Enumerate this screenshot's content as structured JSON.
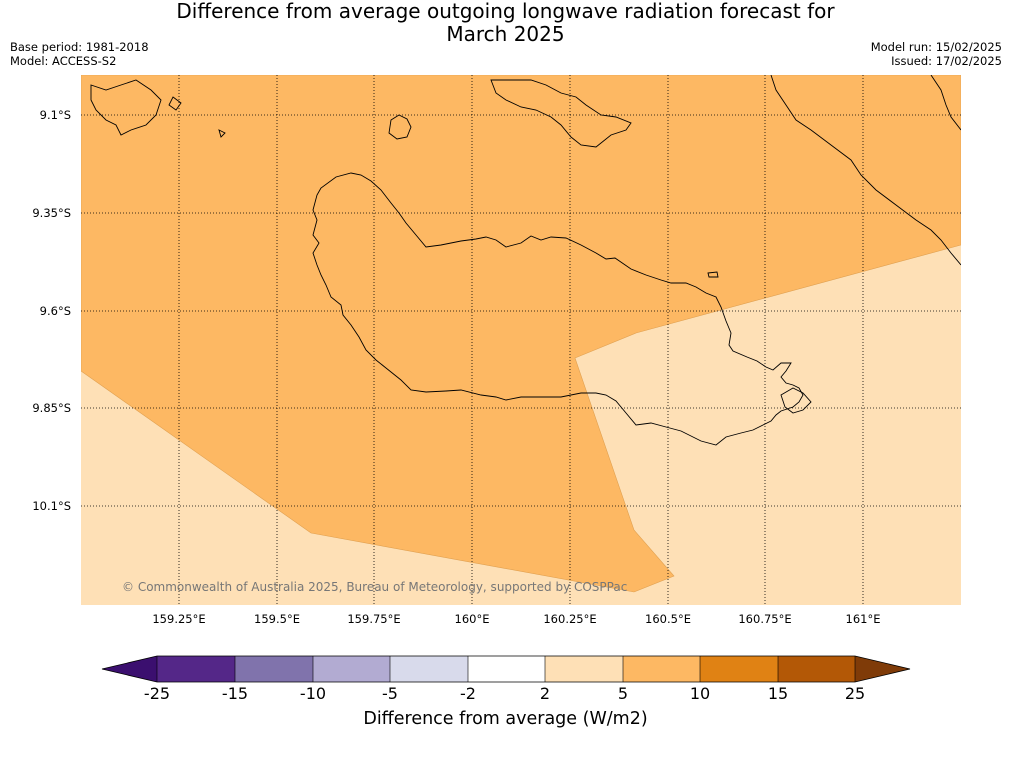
{
  "title_line1": "Difference from average outgoing longwave radiation forecast for",
  "title_line2": "March 2025",
  "base_period": "Base period: 1981-2018",
  "model": "Model: ACCESS-S2",
  "model_run": "Model run: 15/02/2025",
  "issued": "Issued: 17/02/2025",
  "copyright": "© Commonwealth of Australia 2025, Bureau of Meteorology, supported by COSPPac",
  "lat_labels": [
    "9.1°S",
    "9.35°S",
    "9.6°S",
    "9.85°S",
    "10.1°S"
  ],
  "lon_labels": [
    "159.25°E",
    "159.5°E",
    "159.75°E",
    "160°E",
    "160.25°E",
    "160.5°E",
    "160.75°E",
    "161°E"
  ],
  "colorbar": {
    "ticks": [
      "-25",
      "-15",
      "-10",
      "-5",
      "-2",
      "2",
      "5",
      "10",
      "15",
      "25"
    ],
    "colors": [
      "#3b0f6f",
      "#542788",
      "#8073ac",
      "#b2abd2",
      "#d8daeb",
      "#ffffff",
      "#fee0b6",
      "#fdb863",
      "#e08214",
      "#b35806",
      "#7f3b08"
    ],
    "label": "Difference from average (W/m2)"
  },
  "map_colors": {
    "band_2_5": "#fee0b6",
    "band_5_10": "#fdb863"
  }
}
